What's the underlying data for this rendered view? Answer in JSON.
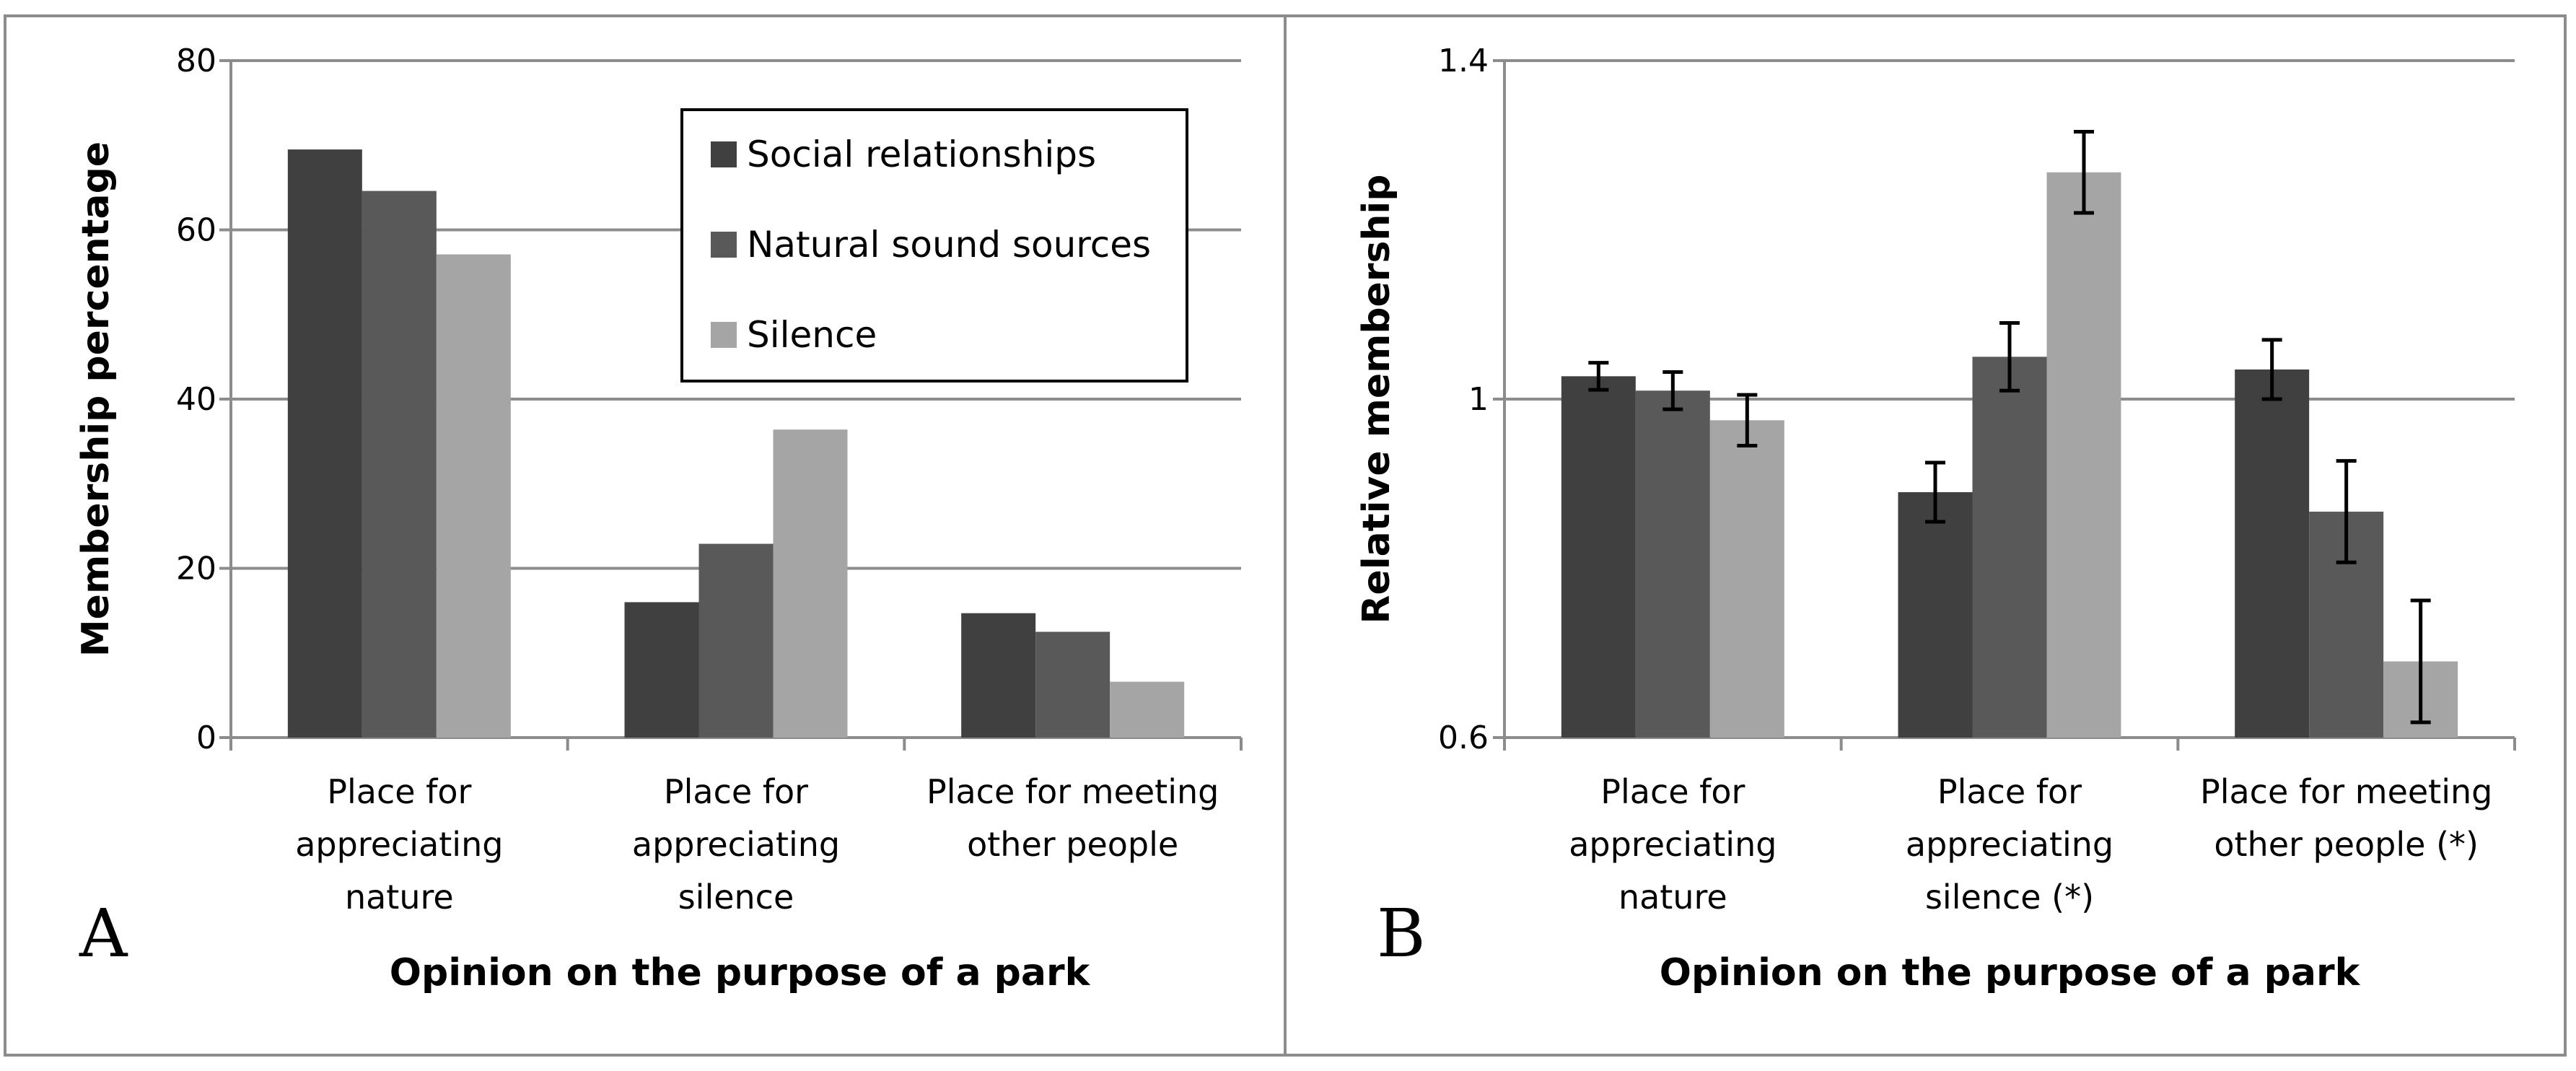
{
  "chart_data": [
    {
      "type": "bar",
      "panel_label": "A",
      "title": "",
      "xlabel": "Opinion on the purpose of a park",
      "ylabel": "Membership percentage",
      "ylim": [
        0,
        80
      ],
      "yticks": [
        "0",
        "20",
        "40",
        "60",
        "80"
      ],
      "grid": true,
      "legend_position": "top-right",
      "categories": [
        [
          "Place for",
          "appreciating",
          "nature"
        ],
        [
          "Place for",
          "appreciating",
          "silence"
        ],
        [
          "Place for meeting",
          "other people"
        ]
      ],
      "series": [
        {
          "name": "Social relationships",
          "color": "#404040",
          "values": [
            69.5,
            16.0,
            14.7
          ]
        },
        {
          "name": "Natural sound sources",
          "color": "#595959",
          "values": [
            64.6,
            22.9,
            12.5
          ]
        },
        {
          "name": "Silence",
          "color": "#a5a5a5",
          "values": [
            57.1,
            36.4,
            6.6
          ]
        }
      ]
    },
    {
      "type": "bar",
      "panel_label": "B",
      "title": "",
      "xlabel": "Opinion on the purpose of a park",
      "ylabel": "Relative membership",
      "ylim": [
        0.6,
        1.4
      ],
      "yticks": [
        "0.6",
        "1",
        "1.4"
      ],
      "grid": true,
      "categories": [
        [
          "Place for",
          "appreciating",
          "nature"
        ],
        [
          "Place for",
          "appreciating",
          "silence (*)"
        ],
        [
          "Place for meeting",
          "other people (*)"
        ]
      ],
      "series": [
        {
          "name": "Social relationships",
          "color": "#404040",
          "values": [
            1.027,
            0.89,
            1.035
          ],
          "error": [
            0.016,
            0.035,
            0.035
          ]
        },
        {
          "name": "Natural sound sources",
          "color": "#595959",
          "values": [
            1.01,
            1.05,
            0.867
          ],
          "error": [
            0.022,
            0.04,
            0.06
          ]
        },
        {
          "name": "Silence",
          "color": "#a5a5a5",
          "values": [
            0.975,
            1.268,
            0.69
          ],
          "error": [
            0.03,
            0.048,
            0.072
          ]
        }
      ]
    }
  ]
}
